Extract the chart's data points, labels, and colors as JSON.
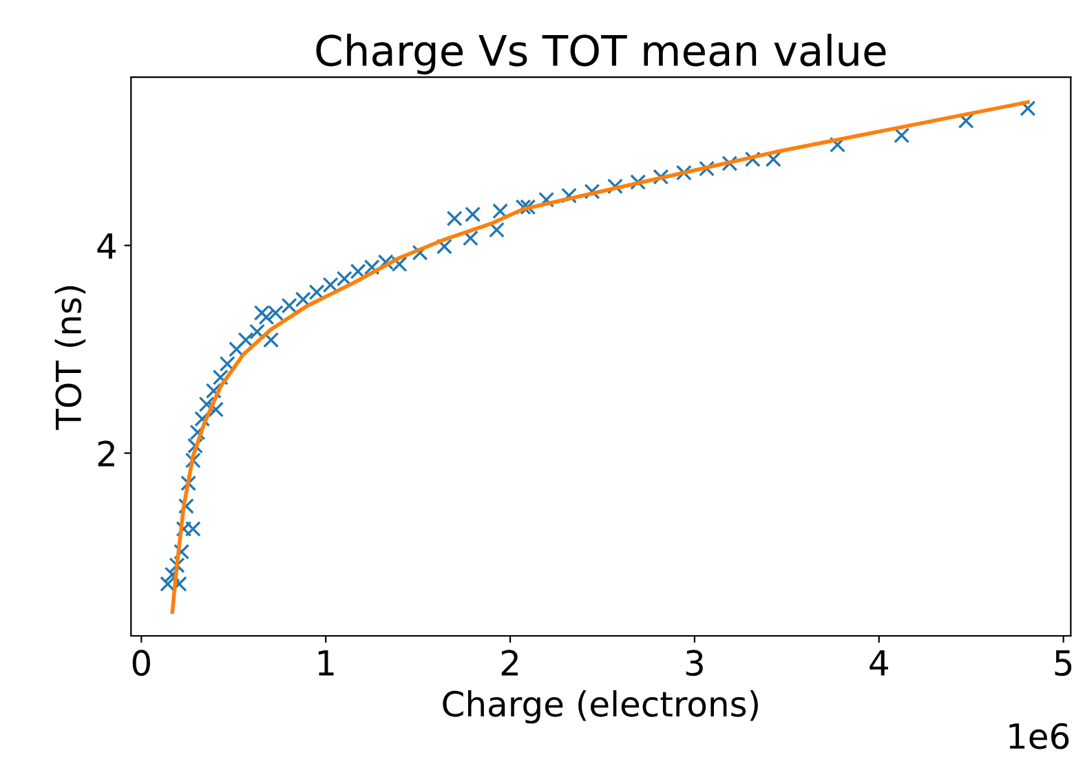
{
  "chart_data": {
    "type": "scatter",
    "title": "Charge Vs TOT mean value",
    "xlabel": "Charge (electrons)",
    "ylabel": "TOT (ns)",
    "annotations": [
      "1e6"
    ],
    "xlim": [
      -0.056,
      5.04
    ],
    "ylim": [
      0.24,
      5.62
    ],
    "xticks": [
      0,
      1,
      2,
      3,
      4,
      5
    ],
    "yticks": [
      2,
      4
    ],
    "grid": false,
    "legend": false,
    "series": [
      {
        "marker": "cross",
        "color": "#1f77b4",
        "x": [
          0.143,
          0.168,
          0.193,
          0.205,
          0.218,
          0.23,
          0.243,
          0.255,
          0.28,
          0.28,
          0.292,
          0.305,
          0.33,
          0.354,
          0.392,
          0.404,
          0.429,
          0.466,
          0.516,
          0.566,
          0.628,
          0.653,
          0.678,
          0.703,
          0.728,
          0.802,
          0.877,
          0.951,
          1.026,
          1.101,
          1.175,
          1.25,
          1.325,
          1.399,
          1.511,
          1.643,
          1.698,
          1.785,
          1.797,
          1.927,
          1.946,
          2.071,
          2.096,
          2.196,
          2.319,
          2.444,
          2.569,
          2.693,
          2.817,
          2.942,
          3.066,
          3.19,
          3.315,
          3.427,
          3.775,
          4.123,
          4.472,
          4.807
        ],
        "values": [
          0.74,
          0.83,
          0.92,
          0.74,
          1.05,
          1.27,
          1.49,
          1.71,
          1.93,
          1.27,
          2.07,
          2.2,
          2.33,
          2.47,
          2.6,
          2.42,
          2.73,
          2.86,
          3.0,
          3.09,
          3.17,
          3.35,
          3.31,
          3.09,
          3.35,
          3.42,
          3.48,
          3.55,
          3.62,
          3.68,
          3.75,
          3.79,
          3.84,
          3.82,
          3.93,
          3.99,
          4.26,
          4.07,
          4.3,
          4.15,
          4.33,
          4.37,
          4.37,
          4.44,
          4.48,
          4.52,
          4.57,
          4.61,
          4.66,
          4.7,
          4.74,
          4.79,
          4.83,
          4.83,
          4.97,
          5.06,
          5.2,
          5.32
        ]
      },
      {
        "type": "line",
        "marker": "none",
        "line_style": "solid",
        "color": "#ff7f0e",
        "x": [
          0.168,
          0.193,
          0.23,
          0.28,
          0.342,
          0.429,
          0.553,
          0.702,
          0.901,
          1.151,
          1.399,
          1.648,
          1.897,
          2.071,
          2.817,
          3.439,
          4.807
        ],
        "values": [
          0.47,
          0.92,
          1.49,
          1.97,
          2.29,
          2.64,
          2.95,
          3.19,
          3.42,
          3.64,
          3.88,
          4.06,
          4.21,
          4.35,
          4.65,
          4.9,
          5.38
        ]
      }
    ]
  }
}
